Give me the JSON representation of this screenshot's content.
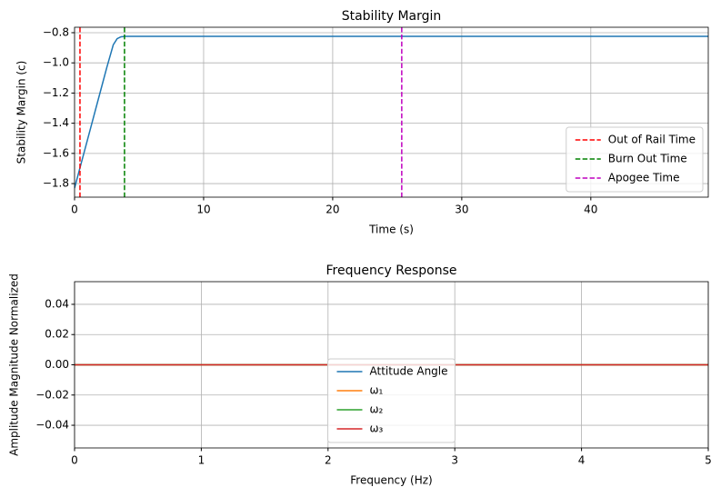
{
  "chart_data": [
    {
      "type": "line",
      "title": "Stability Margin",
      "xlabel": "Time (s)",
      "ylabel": "Stability Margin (c)",
      "xlim": [
        0,
        49.1
      ],
      "ylim": [
        -1.89,
        -0.764
      ],
      "xticks": [
        0,
        10,
        20,
        30,
        40
      ],
      "yticks": [
        {
          "value": -0.8,
          "label": "−0.8"
        },
        {
          "value": -1.0,
          "label": "−1.0"
        },
        {
          "value": -1.2,
          "label": "−1.2"
        },
        {
          "value": -1.4,
          "label": "−1.4"
        },
        {
          "value": -1.6,
          "label": "−1.6"
        },
        {
          "value": -1.8,
          "label": "−1.8"
        }
      ],
      "grid": true,
      "legend": "lower right",
      "series": [
        {
          "color": "#1f77b4",
          "x": [
            0,
            0.5,
            1,
            1.5,
            2,
            2.5,
            3,
            3.3,
            3.6,
            4,
            49.1
          ],
          "values": [
            -1.83,
            -1.67,
            -1.51,
            -1.35,
            -1.19,
            -1.03,
            -0.88,
            -0.84,
            -0.827,
            -0.824,
            -0.824
          ]
        }
      ],
      "vlines": [
        {
          "name": "Out of Rail Time",
          "color": "#ff0000",
          "x": 0.42,
          "style": "dashed"
        },
        {
          "name": "Burn Out Time",
          "color": "#008000",
          "x": 3.87,
          "style": "dashed"
        },
        {
          "name": "Apogee Time",
          "color": "#bf00bf",
          "x": 25.35,
          "style": "dashed"
        }
      ]
    },
    {
      "type": "line",
      "title": "Frequency Response",
      "xlabel": "Frequency (Hz)",
      "ylabel": "Amplitude Magnitude Normalized",
      "xlim": [
        0,
        5
      ],
      "ylim": [
        -0.055,
        0.055
      ],
      "xticks": [
        0,
        1,
        2,
        3,
        4,
        5
      ],
      "yticks": [
        0.04,
        0.02,
        {
          "value": 0,
          "label": "0.00"
        },
        {
          "value": -0.02,
          "label": "−0.02"
        },
        {
          "value": -0.04,
          "label": "−0.04"
        }
      ],
      "grid": true,
      "legend": "lower center",
      "series": [
        {
          "name": "Attitude Angle",
          "color": "#1f77b4",
          "x": [
            0,
            5
          ],
          "values": [
            0,
            0
          ]
        },
        {
          "name": "ω₁",
          "color": "#ff7f0e",
          "x": [
            0,
            5
          ],
          "values": [
            0,
            0
          ]
        },
        {
          "name": "ω₂",
          "color": "#2ca02c",
          "x": [
            0,
            5
          ],
          "values": [
            0,
            0
          ]
        },
        {
          "name": "ω₃",
          "color": "#d62728",
          "x": [
            0,
            5
          ],
          "values": [
            0,
            0
          ]
        }
      ]
    }
  ]
}
